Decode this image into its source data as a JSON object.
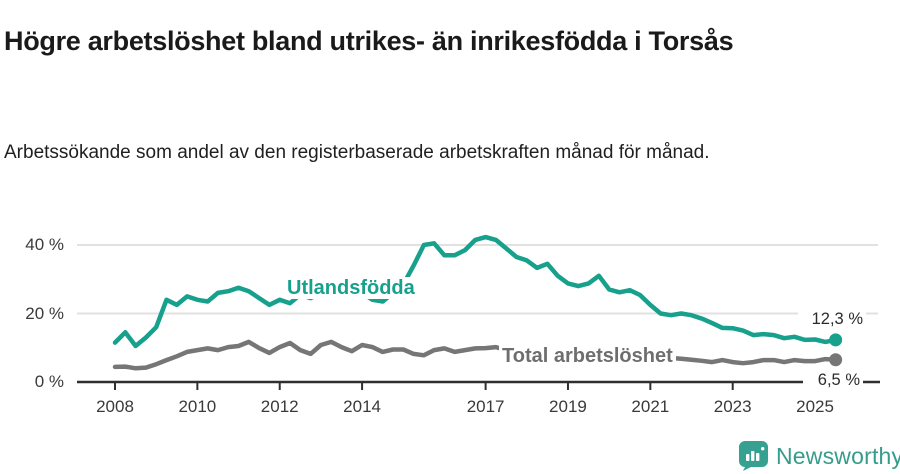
{
  "header": {
    "title": "Högre arbetslöshet bland utrikes- än inrikesfödda i Torsås",
    "subtitle": "Arbetssökande som andel av den registerbaserade arbetskraften månad för månad."
  },
  "footer": {
    "brand": "Newsworthy"
  },
  "colors": {
    "teal": "#17a08c",
    "gray": "#767676",
    "axis": "#2f2f2f",
    "grid": "#e1e1e1",
    "logo_teal": "#369c8b",
    "label_gray": "#6e6e6e"
  },
  "chart_data": {
    "type": "line",
    "title": "Högre arbetslöshet bland utrikes- än inrikesfödda i Torsås",
    "xlabel": "",
    "ylabel": "",
    "x_start": 2008.0,
    "x_step": 0.25,
    "xlim": [
      2007.1,
      2026.5
    ],
    "ylim": [
      0,
      45
    ],
    "grid": true,
    "legend": "inline-labels",
    "yticks": [
      {
        "value": 40,
        "label": "40 %"
      },
      {
        "value": 20,
        "label": "20 %"
      },
      {
        "value": 0,
        "label": "0 %"
      }
    ],
    "xticks": [
      {
        "year": 2008,
        "label": "2008"
      },
      {
        "year": 2010,
        "label": "2010"
      },
      {
        "year": 2012,
        "label": "2012"
      },
      {
        "year": 2014,
        "label": "2014"
      },
      {
        "year": 2017,
        "label": "2017"
      },
      {
        "year": 2019,
        "label": "2019"
      },
      {
        "year": 2021,
        "label": "2021"
      },
      {
        "year": 2023,
        "label": "2023"
      },
      {
        "year": 2025,
        "label": "2025"
      }
    ],
    "series": [
      {
        "name": "Utlandsfödda",
        "color": "#17a08c",
        "end_label": "12,3 %",
        "end_value": 12.3,
        "values": [
          11.5,
          14.5,
          10.5,
          13.0,
          16.0,
          24.0,
          22.5,
          25.0,
          24.0,
          23.5,
          26.0,
          26.5,
          27.5,
          26.5,
          24.5,
          22.5,
          24.0,
          23.0,
          25.5,
          24.5,
          26.0,
          25.0,
          26.5,
          25.5,
          26.0,
          24.0,
          23.5,
          26.0,
          28.5,
          34.0,
          40.0,
          40.5,
          37.0,
          37.0,
          38.5,
          41.5,
          42.3,
          41.5,
          39.0,
          36.5,
          35.5,
          33.3,
          34.5,
          31.0,
          28.8,
          28.0,
          28.8,
          31.0,
          27.0,
          26.2,
          26.8,
          25.4,
          22.5,
          20.0,
          19.5,
          20.0,
          19.5,
          18.5,
          17.2,
          15.8,
          15.7,
          15.0,
          13.7,
          14.0,
          13.7,
          12.8,
          13.2,
          12.3,
          12.4,
          11.7,
          12.3
        ]
      },
      {
        "name": "Total arbetslöshet",
        "color": "#767676",
        "end_label": "6,5 %",
        "end_value": 6.5,
        "values": [
          4.4,
          4.5,
          4.0,
          4.2,
          5.2,
          6.4,
          7.5,
          8.8,
          9.3,
          9.8,
          9.3,
          10.2,
          10.5,
          11.7,
          9.9,
          8.5,
          10.2,
          11.4,
          9.3,
          8.2,
          10.8,
          11.7,
          10.2,
          9.0,
          10.8,
          10.2,
          8.8,
          9.5,
          9.5,
          8.2,
          7.8,
          9.3,
          9.8,
          8.8,
          9.3,
          9.8,
          9.9,
          10.2,
          9.3,
          8.8,
          8.8,
          8.3,
          8.5,
          8.0,
          7.8,
          7.5,
          7.8,
          8.0,
          8.2,
          8.8,
          8.5,
          8.0,
          7.8,
          7.3,
          7.0,
          6.8,
          6.5,
          6.2,
          5.8,
          6.4,
          5.8,
          5.5,
          5.8,
          6.4,
          6.4,
          5.8,
          6.4,
          6.1,
          6.1,
          6.7,
          6.5
        ]
      }
    ]
  }
}
